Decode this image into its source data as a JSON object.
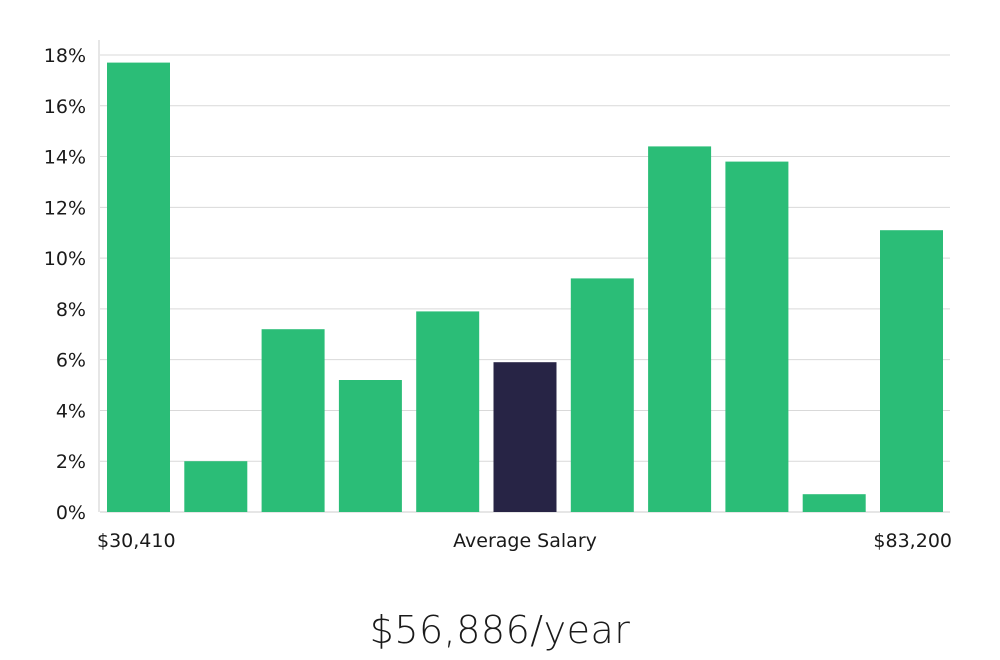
{
  "chart_data": {
    "type": "bar",
    "title": "",
    "xlabel": "Average Salary",
    "ylabel": "",
    "x_range_labels": {
      "min": "$30,410",
      "max": "$83,200"
    },
    "ylim": [
      0,
      18.6
    ],
    "yticks": [
      0,
      2,
      4,
      6,
      8,
      10,
      12,
      14,
      16,
      18
    ],
    "ytick_suffix": "%",
    "grid": true,
    "values": [
      17.7,
      2.0,
      7.2,
      5.2,
      7.9,
      5.9,
      9.2,
      14.4,
      13.8,
      0.7,
      11.1
    ],
    "highlight_index": 5,
    "colors": {
      "bar": "#2bbd77",
      "highlight": "#272445",
      "grid": "#d9d9d9",
      "axis": "#cccccc"
    }
  },
  "summary": {
    "salary_text": "$56,886/year"
  }
}
